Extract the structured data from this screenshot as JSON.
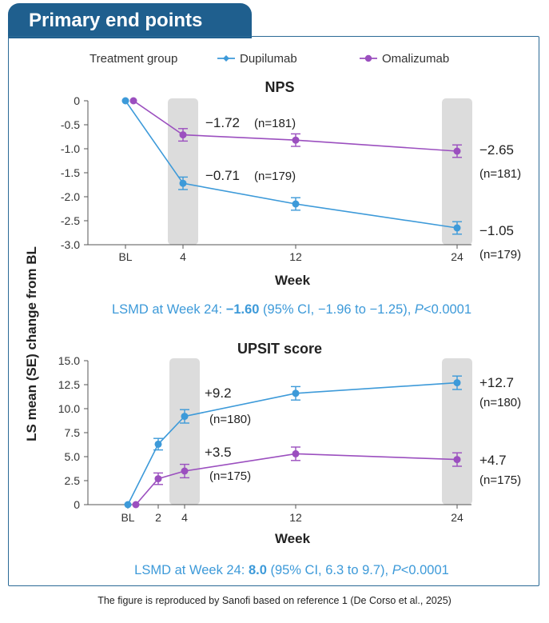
{
  "header": {
    "title": "Primary end points"
  },
  "legend": {
    "title": "Treatment group",
    "items": [
      "Dupilumab",
      "Omalizumab"
    ]
  },
  "y_axis_label": "LS mean (SE) change from BL",
  "colors": {
    "dupilumab": "#3d9ad9",
    "omalizumab": "#9b4fbf",
    "lsmd": "#3d9ad9",
    "header": "#1f5f8e",
    "highlight": "#dcdcdc"
  },
  "chart_data": [
    {
      "type": "line",
      "title": "NPS",
      "xlabel": "Week",
      "ylim": [
        -3.0,
        0
      ],
      "yticks": [
        "0",
        "-0.5",
        "-1.0",
        "-1.5",
        "-2.0",
        "-2.5",
        "-3.0"
      ],
      "xticks": [
        "BL",
        "4",
        "12",
        "24"
      ],
      "highlight_weeks": [
        "4",
        "24"
      ],
      "series": [
        {
          "name": "Dupilumab",
          "x": [
            "BL",
            "4",
            "12",
            "24"
          ],
          "values": [
            0,
            -1.72,
            -2.15,
            -2.65
          ],
          "se": [
            0,
            0.13,
            0.13,
            0.13
          ],
          "labels": [
            {
              "week": "4",
              "value": "−1.72",
              "n": "(n=181)"
            },
            {
              "week": "24",
              "value": "−2.65",
              "n": "(n=181)"
            }
          ]
        },
        {
          "name": "Omalizumab",
          "x": [
            "BL",
            "4",
            "12",
            "24"
          ],
          "values": [
            0,
            -0.71,
            -0.82,
            -1.05
          ],
          "se": [
            0,
            0.13,
            0.13,
            0.13
          ],
          "labels": [
            {
              "week": "4",
              "value": "−0.71",
              "n": "(n=179)"
            },
            {
              "week": "24",
              "value": "−1.05",
              "n": "(n=179)"
            }
          ]
        }
      ],
      "lsmd": {
        "prefix": "LSMD at Week 24: ",
        "value": "−1.60",
        "ci": " (95% CI, −1.96 to −1.25), ",
        "p_italic": "P",
        "p_rest": "<0.0001"
      }
    },
    {
      "type": "line",
      "title": "UPSIT score",
      "xlabel": "Week",
      "ylim": [
        0,
        15.0
      ],
      "yticks": [
        "15.0",
        "12.5",
        "10.0",
        "7.5",
        "5.0",
        "2.5",
        "0"
      ],
      "xticks": [
        "BL",
        "2",
        "4",
        "12",
        "24"
      ],
      "highlight_weeks": [
        "4",
        "24"
      ],
      "series": [
        {
          "name": "Dupilumab",
          "x": [
            "BL",
            "2",
            "4",
            "12",
            "24"
          ],
          "values": [
            0,
            6.3,
            9.2,
            11.6,
            12.7
          ],
          "se": [
            0,
            0.6,
            0.7,
            0.7,
            0.7
          ],
          "labels": [
            {
              "week": "4",
              "value": "+9.2",
              "n": "(n=180)"
            },
            {
              "week": "24",
              "value": "+12.7",
              "n": "(n=180)"
            }
          ]
        },
        {
          "name": "Omalizumab",
          "x": [
            "BL",
            "2",
            "4",
            "12",
            "24"
          ],
          "values": [
            0,
            2.7,
            3.5,
            5.3,
            4.7
          ],
          "se": [
            0,
            0.6,
            0.7,
            0.7,
            0.7
          ],
          "labels": [
            {
              "week": "4",
              "value": "+3.5",
              "n": "(n=175)"
            },
            {
              "week": "24",
              "value": "+4.7",
              "n": "(n=175)"
            }
          ]
        }
      ],
      "lsmd": {
        "prefix": "LSMD at Week 24: ",
        "value": "8.0",
        "ci": " (95% CI, 6.3 to 9.7), ",
        "p_italic": "P",
        "p_rest": "<0.0001"
      }
    }
  ],
  "caption": "The figure is reproduced by Sanofi based on reference 1 (De Corso et al., 2025)"
}
